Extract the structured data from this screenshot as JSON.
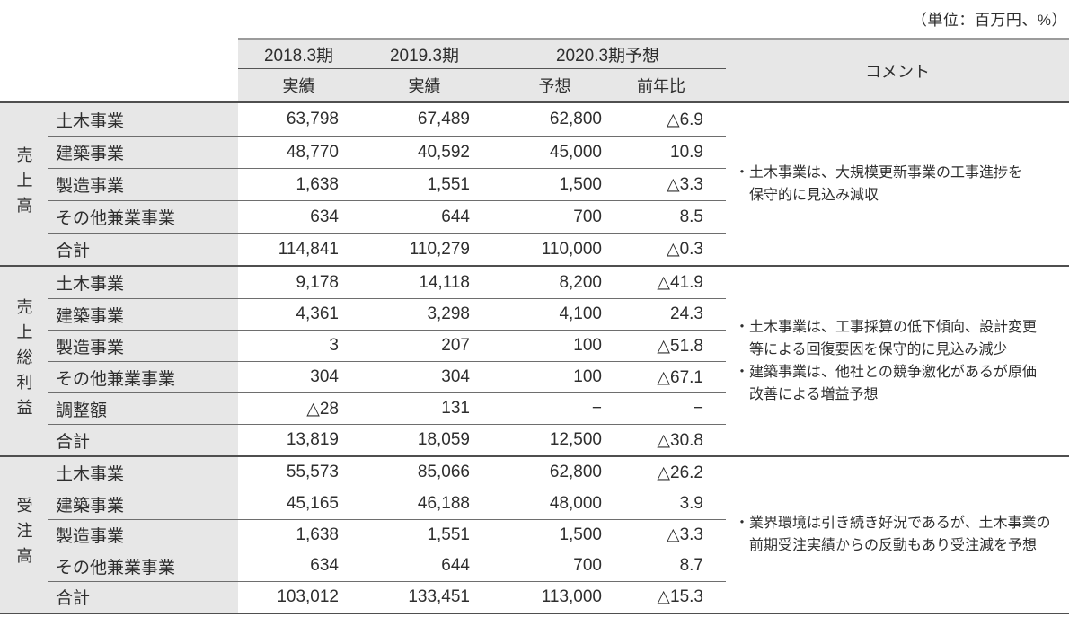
{
  "unit_note": "（単位：百万円、%）",
  "colors": {
    "header_bg": "#e7e7e7",
    "row_label_bg": "#e7e7e7",
    "border_dark": "#4f4f4f",
    "border_light": "#9b9b9b",
    "row_line": "#6e6e6e",
    "text": "#2e2e2e"
  },
  "header": {
    "y2018": "2018.3期",
    "y2019": "2019.3期",
    "y2020": "2020.3期予想",
    "sub2018": "実績",
    "sub2019": "実績",
    "sub_forecast": "予想",
    "sub_yoy": "前年比",
    "comment": "コメント"
  },
  "sections": [
    {
      "title": "売上高",
      "rows": [
        [
          "土木事業",
          "63,798",
          "67,489",
          "62,800",
          "△6.9"
        ],
        [
          "建築事業",
          "48,770",
          "40,592",
          "45,000",
          "10.9"
        ],
        [
          "製造事業",
          "1,638",
          "1,551",
          "1,500",
          "△3.3"
        ],
        [
          "その他兼業事業",
          "634",
          "644",
          "700",
          "8.5"
        ],
        [
          "合計",
          "114,841",
          "110,279",
          "110,000",
          "△0.3"
        ]
      ],
      "comments": [
        "・土木事業は、大規模更新事業の工事進捗を",
        "保守的に見込み減収"
      ]
    },
    {
      "title": "売上総利益",
      "rows": [
        [
          "土木事業",
          "9,178",
          "14,118",
          "8,200",
          "△41.9"
        ],
        [
          "建築事業",
          "4,361",
          "3,298",
          "4,100",
          "24.3"
        ],
        [
          "製造事業",
          "3",
          "207",
          "100",
          "△51.8"
        ],
        [
          "その他兼業事業",
          "304",
          "304",
          "100",
          "△67.1"
        ],
        [
          "調整額",
          "△28",
          "131",
          "−",
          "−"
        ],
        [
          "合計",
          "13,819",
          "18,059",
          "12,500",
          "△30.8"
        ]
      ],
      "comments": [
        "・土木事業は、工事採算の低下傾向、設計変更",
        "等による回復要因を保守的に見込み減少",
        "・建築事業は、他社との競争激化があるが原価",
        "改善による増益予想"
      ]
    },
    {
      "title": "受注高",
      "rows": [
        [
          "土木事業",
          "55,573",
          "85,066",
          "62,800",
          "△26.2"
        ],
        [
          "建築事業",
          "45,165",
          "46,188",
          "48,000",
          "3.9"
        ],
        [
          "製造事業",
          "1,638",
          "1,551",
          "1,500",
          "△3.3"
        ],
        [
          "その他兼業事業",
          "634",
          "644",
          "700",
          "8.7"
        ],
        [
          "合計",
          "103,012",
          "133,451",
          "113,000",
          "△15.3"
        ]
      ],
      "comments": [
        "・業界環境は引き続き好況であるが、土木事業の",
        "前期受注実績からの反動もあり受注減を予想"
      ]
    }
  ]
}
